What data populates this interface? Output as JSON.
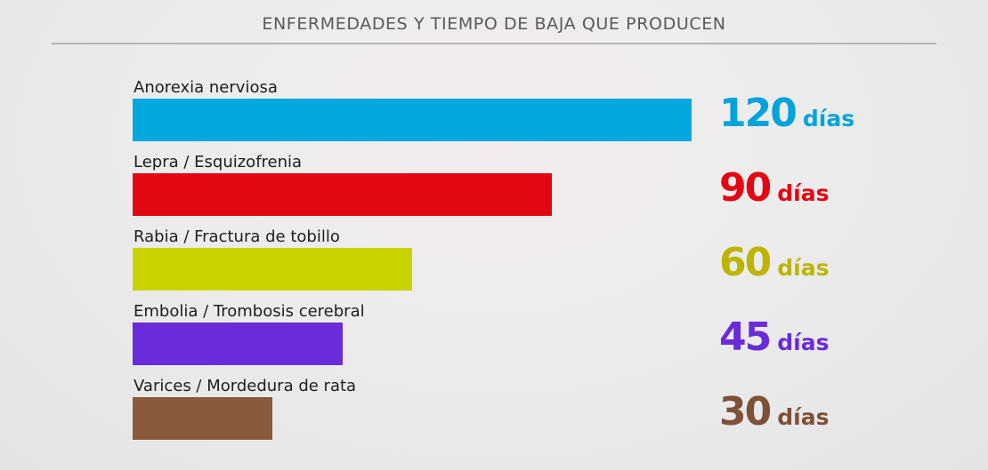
{
  "chart_data": {
    "type": "bar",
    "orientation": "horizontal",
    "title": "ENFERMEDADES Y TIEMPO DE BAJA QUE PRODUCEN",
    "categories": [
      "Anorexia nerviosa",
      "Lepra / Esquizofrenia",
      "Rabia / Fractura de tobillo",
      "Embolia / Trombosis cerebral",
      "Varices / Mordedura de rata"
    ],
    "values": [
      120,
      90,
      60,
      45,
      30
    ],
    "value_labels": [
      "120",
      "90",
      "60",
      "45",
      "30"
    ],
    "unit": "días",
    "xlim": [
      0,
      120
    ],
    "grid": false,
    "legend": "none",
    "colors": [
      "#00a8e0",
      "#e30613",
      "#c9d300",
      "#6a2bd9",
      "#8a5a3c"
    ],
    "value_label_colors": [
      "#00a3dc",
      "#e30613",
      "#bcb400",
      "#6a2bd9",
      "#7d5038"
    ]
  }
}
